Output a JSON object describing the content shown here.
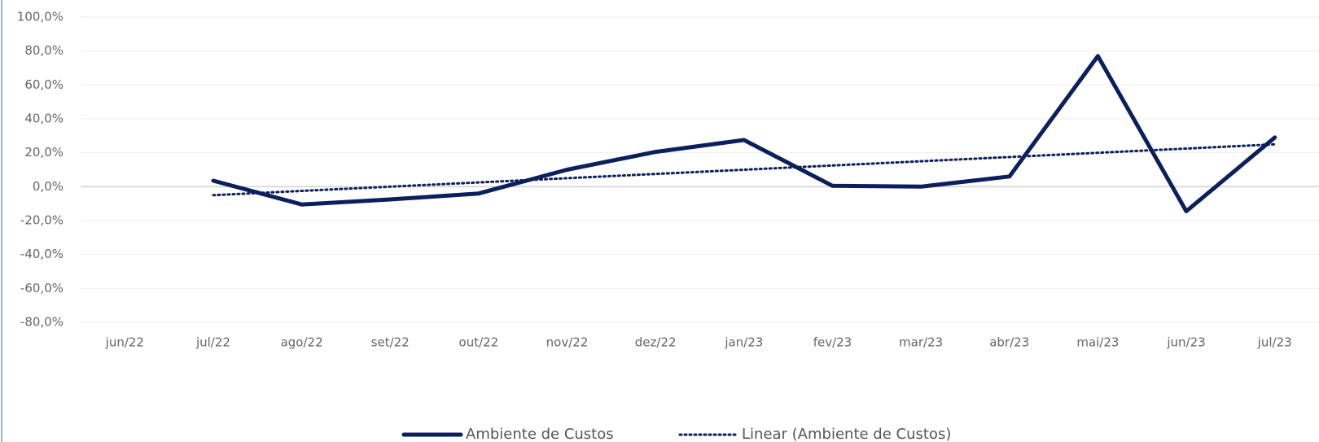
{
  "chart_data": {
    "type": "line",
    "categories": [
      "jun/22",
      "jul/22",
      "ago/22",
      "set/22",
      "out/22",
      "nov/22",
      "dez/22",
      "jan/23",
      "fev/23",
      "mar/23",
      "abr/23",
      "mai/23",
      "jun/23",
      "jul/23"
    ],
    "series": [
      {
        "name": "Ambiente de Custos",
        "color": "#0b1f5c",
        "line_style": "solid",
        "values": [
          null,
          3.5,
          -10.5,
          -7.5,
          -4,
          10,
          20.5,
          27.5,
          0.5,
          0,
          6,
          77,
          -14.5,
          29
        ]
      },
      {
        "name": "Linear (Ambiente de Custos)",
        "color": "#0b1f5c",
        "line_style": "dotted",
        "values": [
          null,
          -5,
          -2.5,
          0,
          2.5,
          5,
          7.5,
          10,
          12.5,
          15,
          17.5,
          20,
          22.5,
          25
        ]
      }
    ],
    "ylim": [
      -80,
      100
    ],
    "yticks": [
      {
        "value": -80,
        "label": "-80,0%"
      },
      {
        "value": -60,
        "label": "-60,0%"
      },
      {
        "value": -40,
        "label": "-40,0%"
      },
      {
        "value": -20,
        "label": "-20,0%"
      },
      {
        "value": 0,
        "label": "0,0%"
      },
      {
        "value": 20,
        "label": "20,0%"
      },
      {
        "value": 40,
        "label": "40,0%"
      },
      {
        "value": 60,
        "label": "60,0%"
      },
      {
        "value": 80,
        "label": "80,0%"
      },
      {
        "value": 100,
        "label": "100,0%"
      }
    ],
    "grid": true,
    "legend": "bottom"
  }
}
